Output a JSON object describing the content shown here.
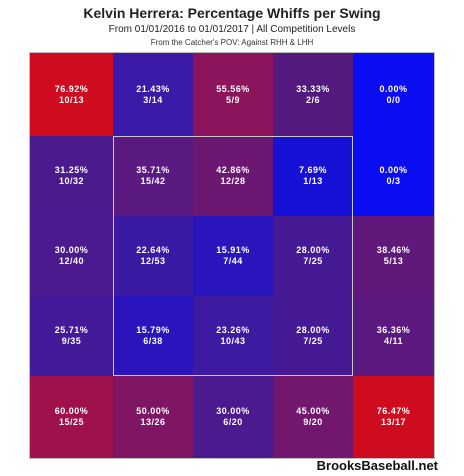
{
  "chart_data": {
    "type": "heatmap",
    "title": "Kelvin Herrera: Percentage Whiffs per Swing",
    "subtitle": "From 01/01/2016 to 01/01/2017 | All Competition Levels",
    "subtitle2": "From the Catcher's POV:  Against RHH & LHH",
    "rows": 5,
    "cols": 5,
    "cells": [
      [
        {
          "pct": "76.92%",
          "count": "10/13",
          "value": 76.92,
          "color": "#cf0b1f"
        },
        {
          "pct": "21.43%",
          "count": "3/14",
          "value": 21.43,
          "color": "#3a1aa6"
        },
        {
          "pct": "55.56%",
          "count": "5/9",
          "value": 55.56,
          "color": "#8c145c"
        },
        {
          "pct": "33.33%",
          "count": "2/6",
          "value": 33.33,
          "color": "#53197f"
        },
        {
          "pct": "0.00%",
          "count": "0/0",
          "value": 0.0,
          "color": "#0a0cf2"
        }
      ],
      [
        {
          "pct": "31.25%",
          "count": "10/32",
          "value": 31.25,
          "color": "#4b1a8c"
        },
        {
          "pct": "35.71%",
          "count": "15/42",
          "value": 35.71,
          "color": "#5a1a82"
        },
        {
          "pct": "42.86%",
          "count": "12/28",
          "value": 42.86,
          "color": "#6c1872"
        },
        {
          "pct": "7.69%",
          "count": "1/13",
          "value": 7.69,
          "color": "#1710d6"
        },
        {
          "pct": "0.00%",
          "count": "0/3",
          "value": 0.0,
          "color": "#0a0cf2"
        }
      ],
      [
        {
          "pct": "30.00%",
          "count": "12/40",
          "value": 30.0,
          "color": "#4a1a8e"
        },
        {
          "pct": "22.64%",
          "count": "12/53",
          "value": 22.64,
          "color": "#3b1aa3"
        },
        {
          "pct": "15.91%",
          "count": "7/44",
          "value": 15.91,
          "color": "#2a14bc"
        },
        {
          "pct": "28.00%",
          "count": "7/25",
          "value": 28.0,
          "color": "#451a94"
        },
        {
          "pct": "38.46%",
          "count": "5/13",
          "value": 38.46,
          "color": "#60197b"
        }
      ],
      [
        {
          "pct": "25.71%",
          "count": "9/35",
          "value": 25.71,
          "color": "#421a99"
        },
        {
          "pct": "15.79%",
          "count": "6/38",
          "value": 15.79,
          "color": "#2a14bc"
        },
        {
          "pct": "23.26%",
          "count": "10/43",
          "value": 23.26,
          "color": "#3d1aa0"
        },
        {
          "pct": "28.00%",
          "count": "7/25",
          "value": 28.0,
          "color": "#451a94"
        },
        {
          "pct": "36.36%",
          "count": "4/11",
          "value": 36.36,
          "color": "#5c197f"
        }
      ],
      [
        {
          "pct": "60.00%",
          "count": "15/25",
          "value": 60.0,
          "color": "#9e114c"
        },
        {
          "pct": "50.00%",
          "count": "13/26",
          "value": 50.0,
          "color": "#7e1663"
        },
        {
          "pct": "30.00%",
          "count": "6/20",
          "value": 30.0,
          "color": "#4a1a8e"
        },
        {
          "pct": "45.00%",
          "count": "9/20",
          "value": 45.0,
          "color": "#72176d"
        },
        {
          "pct": "76.47%",
          "count": "13/17",
          "value": 76.47,
          "color": "#cf0b1f"
        }
      ]
    ],
    "strike_zone": {
      "rows": [
        1,
        3
      ],
      "cols": [
        1,
        3
      ]
    },
    "grid": false,
    "legend": "none"
  },
  "credit": "BrooksBaseball.net"
}
